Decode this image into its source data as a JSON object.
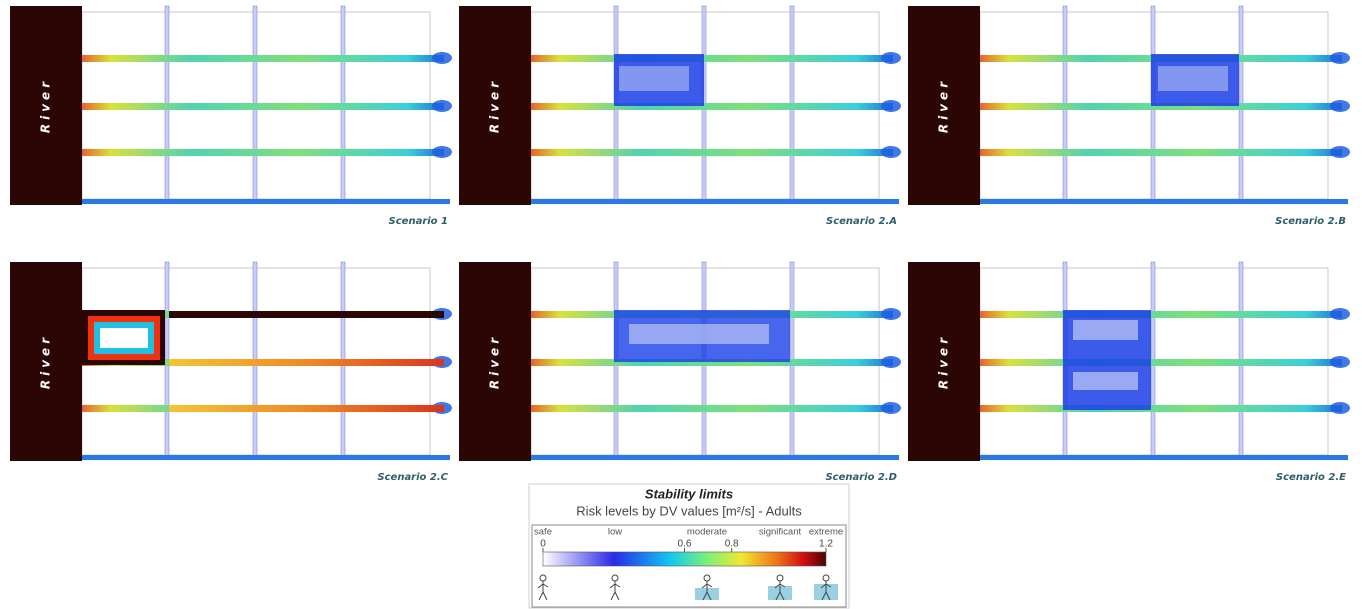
{
  "panels": [
    {
      "river": "River",
      "scenario": "Scenario 1"
    },
    {
      "river": "River",
      "scenario": "Scenario 2.A"
    },
    {
      "river": "River",
      "scenario": "Scenario 2.B"
    },
    {
      "river": "River",
      "scenario": "Scenario 2.C"
    },
    {
      "river": "River",
      "scenario": "Scenario 2.D"
    },
    {
      "river": "River",
      "scenario": "Scenario 2.E"
    }
  ],
  "legend": {
    "title": "Stability limits",
    "subtitle": "Risk levels by DV values [m²/s] - Adults",
    "levels": [
      "safe",
      "low",
      "moderate",
      "significant",
      "extreme"
    ],
    "range": [
      0,
      1.2
    ],
    "ticks": [
      0,
      0.6,
      0.8,
      1.2
    ]
  }
}
